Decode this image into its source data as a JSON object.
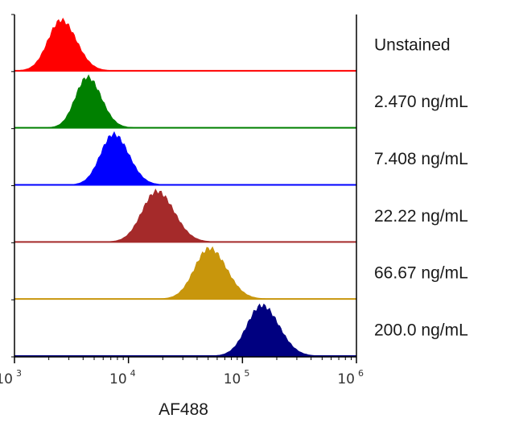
{
  "chart_data": {
    "type": "histogram-overlay",
    "title": "",
    "xlabel": "AF488",
    "ylabel": "",
    "x_scale": "log",
    "xlim": [
      1000,
      1000000
    ],
    "x_ticks": [
      {
        "base": "10",
        "exp": "3"
      },
      {
        "base": "10",
        "exp": "4"
      },
      {
        "base": "10",
        "exp": "5"
      },
      {
        "base": "10",
        "exp": "6"
      }
    ],
    "series": [
      {
        "name": "Unstained",
        "color": "#ff0000",
        "peak_log10": 3.41,
        "width": 0.115,
        "skew": 0.6,
        "baseline_color": "#ff0000"
      },
      {
        "name": "2.470 ng/mL",
        "color": "#008000",
        "peak_log10": 3.64,
        "width": 0.105,
        "skew": 0.6,
        "baseline_color": "#008000"
      },
      {
        "name": "7.408 ng/mL",
        "color": "#0000ff",
        "peak_log10": 3.87,
        "width": 0.115,
        "skew": 0.6,
        "baseline_color": "#0000ff"
      },
      {
        "name": "22.22 ng/mL",
        "color": "#a52a2a",
        "peak_log10": 4.25,
        "width": 0.13,
        "skew": 0.6,
        "baseline_color": "#a52a2a"
      },
      {
        "name": "66.67 ng/mL",
        "color": "#c8960c",
        "peak_log10": 4.71,
        "width": 0.13,
        "skew": 0.6,
        "baseline_color": "#c8960c"
      },
      {
        "name": "200.0 ng/mL",
        "color": "#000080",
        "peak_log10": 5.17,
        "width": 0.13,
        "skew": 0.6,
        "baseline_color": "#000080"
      }
    ]
  }
}
